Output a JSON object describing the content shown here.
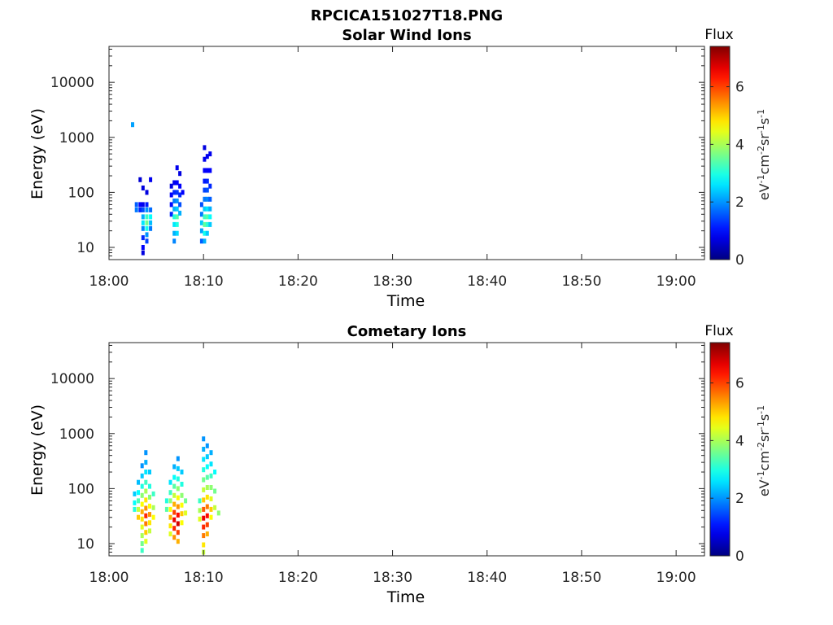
{
  "figure_title": "RPCICA151027T18.PNG",
  "colormap_name": "jet",
  "chart_data": [
    {
      "type": "heatmap",
      "title": "Solar Wind Ions",
      "xlabel": "Time",
      "ylabel": "Energy (eV)",
      "x_unit": "minutes after 18:00",
      "xlim": [
        0,
        63
      ],
      "x_ticks": [
        0,
        10,
        20,
        30,
        40,
        50,
        60
      ],
      "x_tick_labels": [
        "18:00",
        "18:10",
        "18:20",
        "18:30",
        "18:40",
        "18:50",
        "19:00"
      ],
      "y_scale": "log",
      "ylim": [
        6,
        45000
      ],
      "y_ticks": [
        10,
        100,
        1000,
        10000
      ],
      "y_tick_labels": [
        "10",
        "100",
        "1000",
        "10000"
      ],
      "colorbar": {
        "title": "Flux",
        "label": "eV-1cm-2sr-1s-1",
        "range": [
          0,
          7.4
        ],
        "ticks": [
          0,
          2,
          4,
          6
        ],
        "tick_labels": [
          "0",
          "2",
          "4",
          "6"
        ]
      },
      "cells": [
        {
          "t": 2.5,
          "e": 1700,
          "v": 2.1
        },
        {
          "t": 2.9,
          "e": 60,
          "v": 1.6
        },
        {
          "t": 2.9,
          "e": 48,
          "v": 1.8
        },
        {
          "t": 3.3,
          "e": 170,
          "v": 0.6
        },
        {
          "t": 3.3,
          "e": 60,
          "v": 0.9
        },
        {
          "t": 3.3,
          "e": 48,
          "v": 1.2
        },
        {
          "t": 3.6,
          "e": 120,
          "v": 0.7
        },
        {
          "t": 3.6,
          "e": 60,
          "v": 0.8
        },
        {
          "t": 3.6,
          "e": 48,
          "v": 1.5
        },
        {
          "t": 3.6,
          "e": 36,
          "v": 2.2
        },
        {
          "t": 3.6,
          "e": 28,
          "v": 2.6
        },
        {
          "t": 3.6,
          "e": 22,
          "v": 1.9
        },
        {
          "t": 3.6,
          "e": 15,
          "v": 1.2
        },
        {
          "t": 3.6,
          "e": 10,
          "v": 0.9
        },
        {
          "t": 3.6,
          "e": 8,
          "v": 0.7
        },
        {
          "t": 4.0,
          "e": 100,
          "v": 0.7
        },
        {
          "t": 4.0,
          "e": 60,
          "v": 1.1
        },
        {
          "t": 4.0,
          "e": 48,
          "v": 2.0
        },
        {
          "t": 4.0,
          "e": 36,
          "v": 3.2
        },
        {
          "t": 4.0,
          "e": 28,
          "v": 3.6
        },
        {
          "t": 4.0,
          "e": 22,
          "v": 2.9
        },
        {
          "t": 4.0,
          "e": 17,
          "v": 2.0
        },
        {
          "t": 4.0,
          "e": 13,
          "v": 1.4
        },
        {
          "t": 4.4,
          "e": 170,
          "v": 0.8
        },
        {
          "t": 4.4,
          "e": 48,
          "v": 1.7
        },
        {
          "t": 4.4,
          "e": 36,
          "v": 2.8
        },
        {
          "t": 4.4,
          "e": 28,
          "v": 2.3
        },
        {
          "t": 4.4,
          "e": 22,
          "v": 1.8
        },
        {
          "t": 6.6,
          "e": 130,
          "v": 0.7
        },
        {
          "t": 6.6,
          "e": 90,
          "v": 0.9
        },
        {
          "t": 6.6,
          "e": 60,
          "v": 1.0
        },
        {
          "t": 6.6,
          "e": 40,
          "v": 1.2
        },
        {
          "t": 6.9,
          "e": 150,
          "v": 0.8
        },
        {
          "t": 6.9,
          "e": 100,
          "v": 1.2
        },
        {
          "t": 6.9,
          "e": 70,
          "v": 1.8
        },
        {
          "t": 6.9,
          "e": 50,
          "v": 2.2
        },
        {
          "t": 6.9,
          "e": 36,
          "v": 3.0
        },
        {
          "t": 6.9,
          "e": 26,
          "v": 2.6
        },
        {
          "t": 6.9,
          "e": 18,
          "v": 2.2
        },
        {
          "t": 6.9,
          "e": 13,
          "v": 1.9
        },
        {
          "t": 7.2,
          "e": 280,
          "v": 0.8
        },
        {
          "t": 7.2,
          "e": 150,
          "v": 0.9
        },
        {
          "t": 7.2,
          "e": 100,
          "v": 1.3
        },
        {
          "t": 7.2,
          "e": 70,
          "v": 2.0
        },
        {
          "t": 7.2,
          "e": 50,
          "v": 2.4
        },
        {
          "t": 7.2,
          "e": 36,
          "v": 3.4
        },
        {
          "t": 7.2,
          "e": 26,
          "v": 3.0
        },
        {
          "t": 7.2,
          "e": 18,
          "v": 2.5
        },
        {
          "t": 7.5,
          "e": 220,
          "v": 0.7
        },
        {
          "t": 7.5,
          "e": 130,
          "v": 0.9
        },
        {
          "t": 7.5,
          "e": 90,
          "v": 1.2
        },
        {
          "t": 7.5,
          "e": 60,
          "v": 1.5
        },
        {
          "t": 7.5,
          "e": 42,
          "v": 2.2
        },
        {
          "t": 7.8,
          "e": 100,
          "v": 0.9
        },
        {
          "t": 9.8,
          "e": 60,
          "v": 1.5
        },
        {
          "t": 9.8,
          "e": 40,
          "v": 1.8
        },
        {
          "t": 9.8,
          "e": 28,
          "v": 2.4
        },
        {
          "t": 9.8,
          "e": 20,
          "v": 2.1
        },
        {
          "t": 9.8,
          "e": 13,
          "v": 1.6
        },
        {
          "t": 10.1,
          "e": 650,
          "v": 0.7
        },
        {
          "t": 10.1,
          "e": 400,
          "v": 0.8
        },
        {
          "t": 10.1,
          "e": 250,
          "v": 0.9
        },
        {
          "t": 10.1,
          "e": 160,
          "v": 1.1
        },
        {
          "t": 10.1,
          "e": 110,
          "v": 1.4
        },
        {
          "t": 10.1,
          "e": 75,
          "v": 1.8
        },
        {
          "t": 10.1,
          "e": 50,
          "v": 2.4
        },
        {
          "t": 10.1,
          "e": 36,
          "v": 3.2
        },
        {
          "t": 10.1,
          "e": 26,
          "v": 3.5
        },
        {
          "t": 10.1,
          "e": 18,
          "v": 2.9
        },
        {
          "t": 10.1,
          "e": 13,
          "v": 2.2
        },
        {
          "t": 10.4,
          "e": 450,
          "v": 0.8
        },
        {
          "t": 10.4,
          "e": 250,
          "v": 0.9
        },
        {
          "t": 10.4,
          "e": 160,
          "v": 1.2
        },
        {
          "t": 10.4,
          "e": 110,
          "v": 1.5
        },
        {
          "t": 10.4,
          "e": 75,
          "v": 1.9
        },
        {
          "t": 10.4,
          "e": 50,
          "v": 2.6
        },
        {
          "t": 10.4,
          "e": 36,
          "v": 3.4
        },
        {
          "t": 10.4,
          "e": 26,
          "v": 3.1
        },
        {
          "t": 10.4,
          "e": 18,
          "v": 2.4
        },
        {
          "t": 10.7,
          "e": 500,
          "v": 0.8
        },
        {
          "t": 10.7,
          "e": 250,
          "v": 0.9
        },
        {
          "t": 10.7,
          "e": 130,
          "v": 1.2
        },
        {
          "t": 10.7,
          "e": 75,
          "v": 1.6
        },
        {
          "t": 10.7,
          "e": 50,
          "v": 2.2
        },
        {
          "t": 10.7,
          "e": 36,
          "v": 2.8
        },
        {
          "t": 10.7,
          "e": 26,
          "v": 2.4
        }
      ]
    },
    {
      "type": "heatmap",
      "title": "Cometary Ions",
      "xlabel": "Time",
      "ylabel": "Energy (eV)",
      "x_unit": "minutes after 18:00",
      "xlim": [
        0,
        63
      ],
      "x_ticks": [
        0,
        10,
        20,
        30,
        40,
        50,
        60
      ],
      "x_tick_labels": [
        "18:00",
        "18:10",
        "18:20",
        "18:30",
        "18:40",
        "18:50",
        "19:00"
      ],
      "y_scale": "log",
      "ylim": [
        6,
        45000
      ],
      "y_ticks": [
        10,
        100,
        1000,
        10000
      ],
      "y_tick_labels": [
        "10",
        "100",
        "1000",
        "10000"
      ],
      "colorbar": {
        "title": "Flux",
        "label": "eV-1cm-2sr-1s-1",
        "range": [
          0,
          7.4
        ],
        "ticks": [
          0,
          2,
          4,
          6
        ],
        "tick_labels": [
          "0",
          "2",
          "4",
          "6"
        ]
      },
      "cells": [
        {
          "t": 2.7,
          "e": 80,
          "v": 2.4
        },
        {
          "t": 2.7,
          "e": 55,
          "v": 2.8
        },
        {
          "t": 2.7,
          "e": 42,
          "v": 3.0
        },
        {
          "t": 3.1,
          "e": 130,
          "v": 2.3
        },
        {
          "t": 3.1,
          "e": 85,
          "v": 2.8
        },
        {
          "t": 3.1,
          "e": 60,
          "v": 3.3
        },
        {
          "t": 3.1,
          "e": 42,
          "v": 4.2
        },
        {
          "t": 3.1,
          "e": 30,
          "v": 5.0
        },
        {
          "t": 3.5,
          "e": 260,
          "v": 2.0
        },
        {
          "t": 3.5,
          "e": 170,
          "v": 2.4
        },
        {
          "t": 3.5,
          "e": 110,
          "v": 3.0
        },
        {
          "t": 3.5,
          "e": 75,
          "v": 3.8
        },
        {
          "t": 3.5,
          "e": 52,
          "v": 4.6
        },
        {
          "t": 3.5,
          "e": 38,
          "v": 5.2
        },
        {
          "t": 3.5,
          "e": 28,
          "v": 4.8
        },
        {
          "t": 3.5,
          "e": 20,
          "v": 4.4
        },
        {
          "t": 3.5,
          "e": 14,
          "v": 4.0
        },
        {
          "t": 3.5,
          "e": 10,
          "v": 3.6
        },
        {
          "t": 3.5,
          "e": 7.5,
          "v": 3.2
        },
        {
          "t": 3.9,
          "e": 450,
          "v": 2.0
        },
        {
          "t": 3.9,
          "e": 300,
          "v": 2.2
        },
        {
          "t": 3.9,
          "e": 200,
          "v": 2.6
        },
        {
          "t": 3.9,
          "e": 130,
          "v": 3.2
        },
        {
          "t": 3.9,
          "e": 90,
          "v": 4.0
        },
        {
          "t": 3.9,
          "e": 62,
          "v": 4.8
        },
        {
          "t": 3.9,
          "e": 44,
          "v": 5.4
        },
        {
          "t": 3.9,
          "e": 32,
          "v": 6.2
        },
        {
          "t": 3.9,
          "e": 23,
          "v": 5.6
        },
        {
          "t": 3.9,
          "e": 16,
          "v": 5.0
        },
        {
          "t": 3.9,
          "e": 11,
          "v": 4.4
        },
        {
          "t": 4.3,
          "e": 200,
          "v": 2.4
        },
        {
          "t": 4.3,
          "e": 110,
          "v": 3.0
        },
        {
          "t": 4.3,
          "e": 70,
          "v": 3.8
        },
        {
          "t": 4.3,
          "e": 48,
          "v": 4.6
        },
        {
          "t": 4.3,
          "e": 34,
          "v": 5.4
        },
        {
          "t": 4.3,
          "e": 24,
          "v": 4.8
        },
        {
          "t": 4.3,
          "e": 17,
          "v": 4.2
        },
        {
          "t": 4.7,
          "e": 80,
          "v": 3.2
        },
        {
          "t": 4.7,
          "e": 45,
          "v": 4.0
        },
        {
          "t": 4.7,
          "e": 30,
          "v": 4.6
        },
        {
          "t": 6.1,
          "e": 60,
          "v": 3.0
        },
        {
          "t": 6.1,
          "e": 42,
          "v": 3.4
        },
        {
          "t": 6.5,
          "e": 130,
          "v": 2.6
        },
        {
          "t": 6.5,
          "e": 85,
          "v": 3.2
        },
        {
          "t": 6.5,
          "e": 60,
          "v": 3.8
        },
        {
          "t": 6.5,
          "e": 42,
          "v": 4.6
        },
        {
          "t": 6.5,
          "e": 30,
          "v": 5.2
        },
        {
          "t": 6.5,
          "e": 21,
          "v": 4.8
        },
        {
          "t": 6.5,
          "e": 15,
          "v": 4.4
        },
        {
          "t": 6.9,
          "e": 250,
          "v": 2.2
        },
        {
          "t": 6.9,
          "e": 160,
          "v": 2.8
        },
        {
          "t": 6.9,
          "e": 110,
          "v": 3.4
        },
        {
          "t": 6.9,
          "e": 75,
          "v": 4.2
        },
        {
          "t": 6.9,
          "e": 52,
          "v": 5.2
        },
        {
          "t": 6.9,
          "e": 37,
          "v": 6.0
        },
        {
          "t": 6.9,
          "e": 27,
          "v": 6.6
        },
        {
          "t": 6.9,
          "e": 19,
          "v": 6.2
        },
        {
          "t": 6.9,
          "e": 13,
          "v": 5.4
        },
        {
          "t": 7.3,
          "e": 350,
          "v": 2.0
        },
        {
          "t": 7.3,
          "e": 230,
          "v": 2.4
        },
        {
          "t": 7.3,
          "e": 150,
          "v": 3.0
        },
        {
          "t": 7.3,
          "e": 100,
          "v": 3.8
        },
        {
          "t": 7.3,
          "e": 68,
          "v": 4.6
        },
        {
          "t": 7.3,
          "e": 47,
          "v": 5.4
        },
        {
          "t": 7.3,
          "e": 33,
          "v": 6.4
        },
        {
          "t": 7.3,
          "e": 23,
          "v": 6.8
        },
        {
          "t": 7.3,
          "e": 16,
          "v": 6.0
        },
        {
          "t": 7.3,
          "e": 11,
          "v": 5.2
        },
        {
          "t": 7.7,
          "e": 200,
          "v": 2.4
        },
        {
          "t": 7.7,
          "e": 120,
          "v": 3.0
        },
        {
          "t": 7.7,
          "e": 75,
          "v": 3.8
        },
        {
          "t": 7.7,
          "e": 50,
          "v": 4.6
        },
        {
          "t": 7.7,
          "e": 35,
          "v": 5.0
        },
        {
          "t": 7.7,
          "e": 24,
          "v": 4.6
        },
        {
          "t": 8.1,
          "e": 60,
          "v": 3.6
        },
        {
          "t": 8.1,
          "e": 36,
          "v": 4.4
        },
        {
          "t": 9.6,
          "e": 60,
          "v": 3.2
        },
        {
          "t": 9.6,
          "e": 40,
          "v": 4.0
        },
        {
          "t": 9.6,
          "e": 28,
          "v": 4.4
        },
        {
          "t": 10.0,
          "e": 800,
          "v": 2.0
        },
        {
          "t": 10.0,
          "e": 520,
          "v": 2.2
        },
        {
          "t": 10.0,
          "e": 340,
          "v": 2.6
        },
        {
          "t": 10.0,
          "e": 220,
          "v": 3.0
        },
        {
          "t": 10.0,
          "e": 145,
          "v": 3.6
        },
        {
          "t": 10.0,
          "e": 95,
          "v": 4.2
        },
        {
          "t": 10.0,
          "e": 62,
          "v": 5.0
        },
        {
          "t": 10.0,
          "e": 42,
          "v": 5.8
        },
        {
          "t": 10.0,
          "e": 29,
          "v": 6.6
        },
        {
          "t": 10.0,
          "e": 20,
          "v": 6.2
        },
        {
          "t": 10.0,
          "e": 14,
          "v": 5.6
        },
        {
          "t": 10.0,
          "e": 9.5,
          "v": 4.8
        },
        {
          "t": 10.0,
          "e": 7,
          "v": 4.2
        },
        {
          "t": 10.4,
          "e": 600,
          "v": 2.0
        },
        {
          "t": 10.4,
          "e": 380,
          "v": 2.4
        },
        {
          "t": 10.4,
          "e": 250,
          "v": 2.8
        },
        {
          "t": 10.4,
          "e": 160,
          "v": 3.4
        },
        {
          "t": 10.4,
          "e": 105,
          "v": 4.0
        },
        {
          "t": 10.4,
          "e": 70,
          "v": 4.8
        },
        {
          "t": 10.4,
          "e": 47,
          "v": 5.6
        },
        {
          "t": 10.4,
          "e": 32,
          "v": 6.4
        },
        {
          "t": 10.4,
          "e": 22,
          "v": 6.0
        },
        {
          "t": 10.4,
          "e": 15,
          "v": 5.2
        },
        {
          "t": 10.8,
          "e": 450,
          "v": 2.2
        },
        {
          "t": 10.8,
          "e": 280,
          "v": 2.6
        },
        {
          "t": 10.8,
          "e": 170,
          "v": 3.2
        },
        {
          "t": 10.8,
          "e": 105,
          "v": 3.8
        },
        {
          "t": 10.8,
          "e": 65,
          "v": 4.4
        },
        {
          "t": 10.8,
          "e": 42,
          "v": 5.0
        },
        {
          "t": 10.8,
          "e": 30,
          "v": 4.6
        },
        {
          "t": 11.2,
          "e": 200,
          "v": 2.8
        },
        {
          "t": 11.2,
          "e": 90,
          "v": 3.6
        },
        {
          "t": 11.2,
          "e": 45,
          "v": 4.2
        },
        {
          "t": 11.6,
          "e": 36,
          "v": 3.8
        }
      ]
    }
  ]
}
